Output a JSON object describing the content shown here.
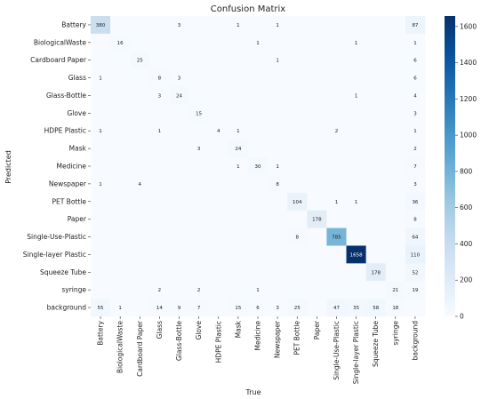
{
  "chart_data": {
    "type": "heatmap",
    "title": "Confusion Matrix",
    "xlabel": "True",
    "ylabel": "Predicted",
    "labels": [
      "Battery",
      "BiologicalWaste",
      "Cardboard Paper",
      "Glass",
      "Glass-Bottle",
      "Glove",
      "HDPE Plastic",
      "Mask",
      "Medicine",
      "Newspaper",
      "PET Bottle",
      "Paper",
      "Single-Use-Plastic",
      "Single-layer Plastic",
      "Squeeze Tube",
      "syringe",
      "background"
    ],
    "matrix": [
      [
        380,
        null,
        null,
        null,
        3,
        null,
        null,
        1,
        null,
        1,
        null,
        null,
        null,
        null,
        null,
        null,
        87
      ],
      [
        null,
        16,
        null,
        null,
        null,
        null,
        null,
        null,
        1,
        null,
        null,
        null,
        null,
        1,
        null,
        null,
        1
      ],
      [
        null,
        null,
        25,
        null,
        null,
        null,
        null,
        null,
        null,
        1,
        null,
        null,
        null,
        null,
        null,
        null,
        6
      ],
      [
        1,
        null,
        null,
        8,
        3,
        null,
        null,
        null,
        null,
        null,
        null,
        null,
        null,
        null,
        null,
        null,
        6
      ],
      [
        null,
        null,
        null,
        3,
        24,
        null,
        null,
        null,
        null,
        null,
        null,
        null,
        null,
        1,
        null,
        null,
        4
      ],
      [
        null,
        null,
        null,
        null,
        null,
        15,
        null,
        null,
        null,
        null,
        null,
        null,
        null,
        null,
        null,
        null,
        3
      ],
      [
        1,
        null,
        null,
        1,
        null,
        null,
        4,
        1,
        null,
        null,
        null,
        null,
        2,
        null,
        null,
        null,
        1
      ],
      [
        null,
        null,
        null,
        null,
        null,
        3,
        null,
        24,
        null,
        null,
        null,
        null,
        null,
        null,
        null,
        null,
        2
      ],
      [
        null,
        null,
        null,
        null,
        null,
        null,
        null,
        1,
        30,
        1,
        null,
        null,
        null,
        null,
        null,
        null,
        7
      ],
      [
        1,
        null,
        4,
        null,
        null,
        null,
        null,
        null,
        null,
        8,
        null,
        null,
        null,
        null,
        null,
        null,
        3
      ],
      [
        null,
        null,
        null,
        null,
        null,
        null,
        null,
        null,
        null,
        null,
        104,
        null,
        1,
        1,
        null,
        null,
        36
      ],
      [
        null,
        null,
        null,
        null,
        null,
        null,
        null,
        null,
        null,
        null,
        null,
        178,
        null,
        null,
        null,
        null,
        8
      ],
      [
        null,
        null,
        null,
        null,
        null,
        null,
        null,
        null,
        null,
        null,
        8,
        null,
        785,
        null,
        null,
        null,
        64
      ],
      [
        null,
        null,
        null,
        null,
        null,
        null,
        null,
        null,
        null,
        null,
        null,
        null,
        null,
        1658,
        null,
        null,
        110
      ],
      [
        null,
        null,
        null,
        null,
        null,
        null,
        null,
        null,
        null,
        null,
        null,
        null,
        null,
        null,
        178,
        null,
        52
      ],
      [
        null,
        null,
        null,
        2,
        null,
        2,
        null,
        null,
        1,
        null,
        null,
        null,
        null,
        null,
        null,
        21,
        19
      ],
      [
        55,
        1,
        null,
        14,
        9,
        7,
        null,
        15,
        6,
        3,
        25,
        null,
        47,
        35,
        58,
        18,
        null
      ]
    ],
    "colorbar": {
      "min": 0,
      "max": 1658,
      "ticks": [
        0,
        200,
        400,
        600,
        800,
        1000,
        1200,
        1400,
        1600
      ]
    },
    "colors": {
      "low": "#f7fbff",
      "high": "#08306b"
    },
    "grid": false
  }
}
